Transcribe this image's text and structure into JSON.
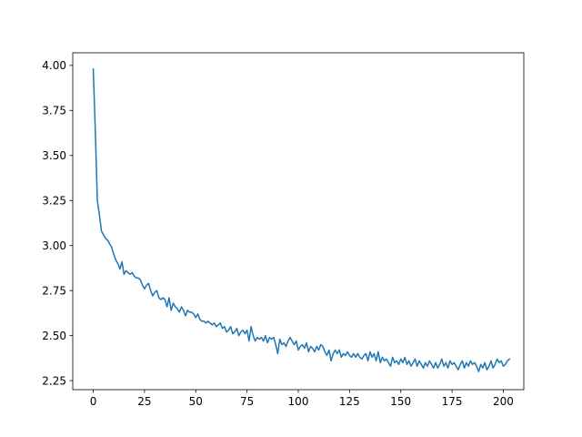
{
  "chart_data": {
    "type": "line",
    "title": "",
    "xlabel": "",
    "ylabel": "",
    "xlim": [
      -10,
      210
    ],
    "ylim": [
      2.2,
      4.07
    ],
    "x_ticks": [
      0,
      25,
      50,
      75,
      100,
      125,
      150,
      175,
      200
    ],
    "y_ticks": [
      2.25,
      2.5,
      2.75,
      3.0,
      3.25,
      3.5,
      3.75,
      4.0
    ],
    "x_tick_labels": [
      "0",
      "25",
      "50",
      "75",
      "100",
      "125",
      "150",
      "175",
      "200"
    ],
    "y_tick_labels": [
      "2.25",
      "2.50",
      "2.75",
      "3.00",
      "3.25",
      "3.50",
      "3.75",
      "4.00"
    ],
    "grid": false,
    "colors": {
      "series": "#1f77b4",
      "axes": "#000000",
      "background": "#ffffff"
    },
    "series": [
      {
        "x_start": 0,
        "x_step": 1,
        "values": [
          3.98,
          3.64,
          3.25,
          3.17,
          3.08,
          3.06,
          3.04,
          3.03,
          3.01,
          2.99,
          2.95,
          2.92,
          2.9,
          2.87,
          2.91,
          2.84,
          2.86,
          2.85,
          2.84,
          2.85,
          2.83,
          2.82,
          2.82,
          2.81,
          2.78,
          2.76,
          2.78,
          2.79,
          2.75,
          2.72,
          2.74,
          2.75,
          2.71,
          2.7,
          2.71,
          2.7,
          2.66,
          2.71,
          2.64,
          2.68,
          2.66,
          2.65,
          2.63,
          2.66,
          2.64,
          2.61,
          2.64,
          2.63,
          2.63,
          2.62,
          2.6,
          2.62,
          2.59,
          2.58,
          2.58,
          2.57,
          2.58,
          2.57,
          2.56,
          2.57,
          2.55,
          2.56,
          2.57,
          2.54,
          2.55,
          2.52,
          2.53,
          2.55,
          2.51,
          2.52,
          2.54,
          2.5,
          2.52,
          2.53,
          2.51,
          2.53,
          2.47,
          2.55,
          2.5,
          2.47,
          2.49,
          2.48,
          2.49,
          2.47,
          2.5,
          2.46,
          2.49,
          2.48,
          2.49,
          2.45,
          2.4,
          2.48,
          2.45,
          2.46,
          2.44,
          2.47,
          2.49,
          2.47,
          2.45,
          2.47,
          2.42,
          2.44,
          2.45,
          2.43,
          2.46,
          2.41,
          2.44,
          2.43,
          2.41,
          2.44,
          2.42,
          2.45,
          2.44,
          2.41,
          2.39,
          2.42,
          2.36,
          2.4,
          2.42,
          2.4,
          2.42,
          2.38,
          2.4,
          2.39,
          2.41,
          2.39,
          2.38,
          2.4,
          2.38,
          2.4,
          2.38,
          2.37,
          2.39,
          2.4,
          2.36,
          2.41,
          2.38,
          2.4,
          2.36,
          2.41,
          2.35,
          2.38,
          2.36,
          2.37,
          2.35,
          2.33,
          2.38,
          2.35,
          2.36,
          2.34,
          2.37,
          2.35,
          2.38,
          2.34,
          2.36,
          2.33,
          2.35,
          2.37,
          2.33,
          2.36,
          2.34,
          2.32,
          2.35,
          2.33,
          2.36,
          2.34,
          2.32,
          2.35,
          2.32,
          2.34,
          2.37,
          2.33,
          2.35,
          2.32,
          2.36,
          2.34,
          2.35,
          2.33,
          2.31,
          2.34,
          2.36,
          2.32,
          2.35,
          2.33,
          2.36,
          2.34,
          2.35,
          2.33,
          2.3,
          2.34,
          2.32,
          2.35,
          2.31,
          2.33,
          2.36,
          2.32,
          2.34,
          2.37,
          2.35,
          2.36,
          2.33,
          2.34,
          2.36,
          2.37
        ]
      }
    ]
  }
}
